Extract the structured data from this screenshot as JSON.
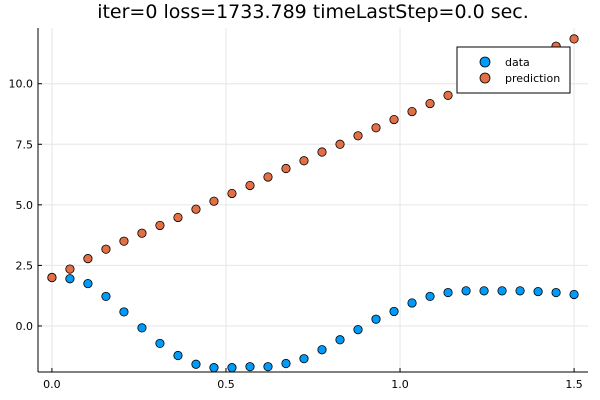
{
  "chart_data": {
    "type": "scatter",
    "title": "iter=0  loss=1733.789 timeLastStep=0.0 sec.",
    "xlabel": "",
    "ylabel": "",
    "xlim": [
      -0.04,
      1.54
    ],
    "ylim": [
      -1.9,
      12.3
    ],
    "xticks": [
      0.0,
      0.5,
      1.0,
      1.5
    ],
    "xtick_labels": [
      "0.0",
      "0.5",
      "1.0",
      "1.5"
    ],
    "yticks": [
      0.0,
      2.5,
      5.0,
      7.5,
      10.0
    ],
    "ytick_labels": [
      "0.0",
      "2.5",
      "5.0",
      "7.5",
      "10.0"
    ],
    "grid": true,
    "legend_position": "top-right",
    "series": [
      {
        "name": "data",
        "color": "#009af9",
        "x": [
          0.0,
          0.0517,
          0.1034,
          0.1552,
          0.2069,
          0.2586,
          0.3103,
          0.3621,
          0.4138,
          0.4655,
          0.5172,
          0.569,
          0.6207,
          0.6724,
          0.7241,
          0.7759,
          0.8276,
          0.8793,
          0.931,
          0.9828,
          1.0345,
          1.0862,
          1.1379,
          1.1897,
          1.2414,
          1.2931,
          1.3448,
          1.3966,
          1.4483,
          1.5
        ],
        "y": [
          2.0,
          1.95,
          1.75,
          1.22,
          0.58,
          -0.08,
          -0.72,
          -1.22,
          -1.58,
          -1.72,
          -1.72,
          -1.68,
          -1.68,
          -1.55,
          -1.35,
          -0.98,
          -0.57,
          -0.15,
          0.28,
          0.6,
          0.95,
          1.22,
          1.38,
          1.45,
          1.45,
          1.45,
          1.45,
          1.42,
          1.38,
          1.3
        ]
      },
      {
        "name": "prediction",
        "color": "#e26f46",
        "x": [
          0.0,
          0.0517,
          0.1034,
          0.1552,
          0.2069,
          0.2586,
          0.3103,
          0.3621,
          0.4138,
          0.4655,
          0.5172,
          0.569,
          0.6207,
          0.6724,
          0.7241,
          0.7759,
          0.8276,
          0.8793,
          0.931,
          0.9828,
          1.0345,
          1.0862,
          1.1379,
          1.1897,
          1.2414,
          1.2931,
          1.3448,
          1.3966,
          1.4483,
          1.5
        ],
        "y": [
          2.0,
          2.35,
          2.78,
          3.17,
          3.5,
          3.83,
          4.15,
          4.48,
          4.82,
          5.15,
          5.47,
          5.8,
          6.15,
          6.5,
          6.82,
          7.18,
          7.5,
          7.85,
          8.18,
          8.52,
          8.85,
          9.18,
          9.52,
          9.85,
          10.18,
          10.5,
          10.85,
          11.18,
          11.55,
          11.85
        ]
      }
    ]
  }
}
